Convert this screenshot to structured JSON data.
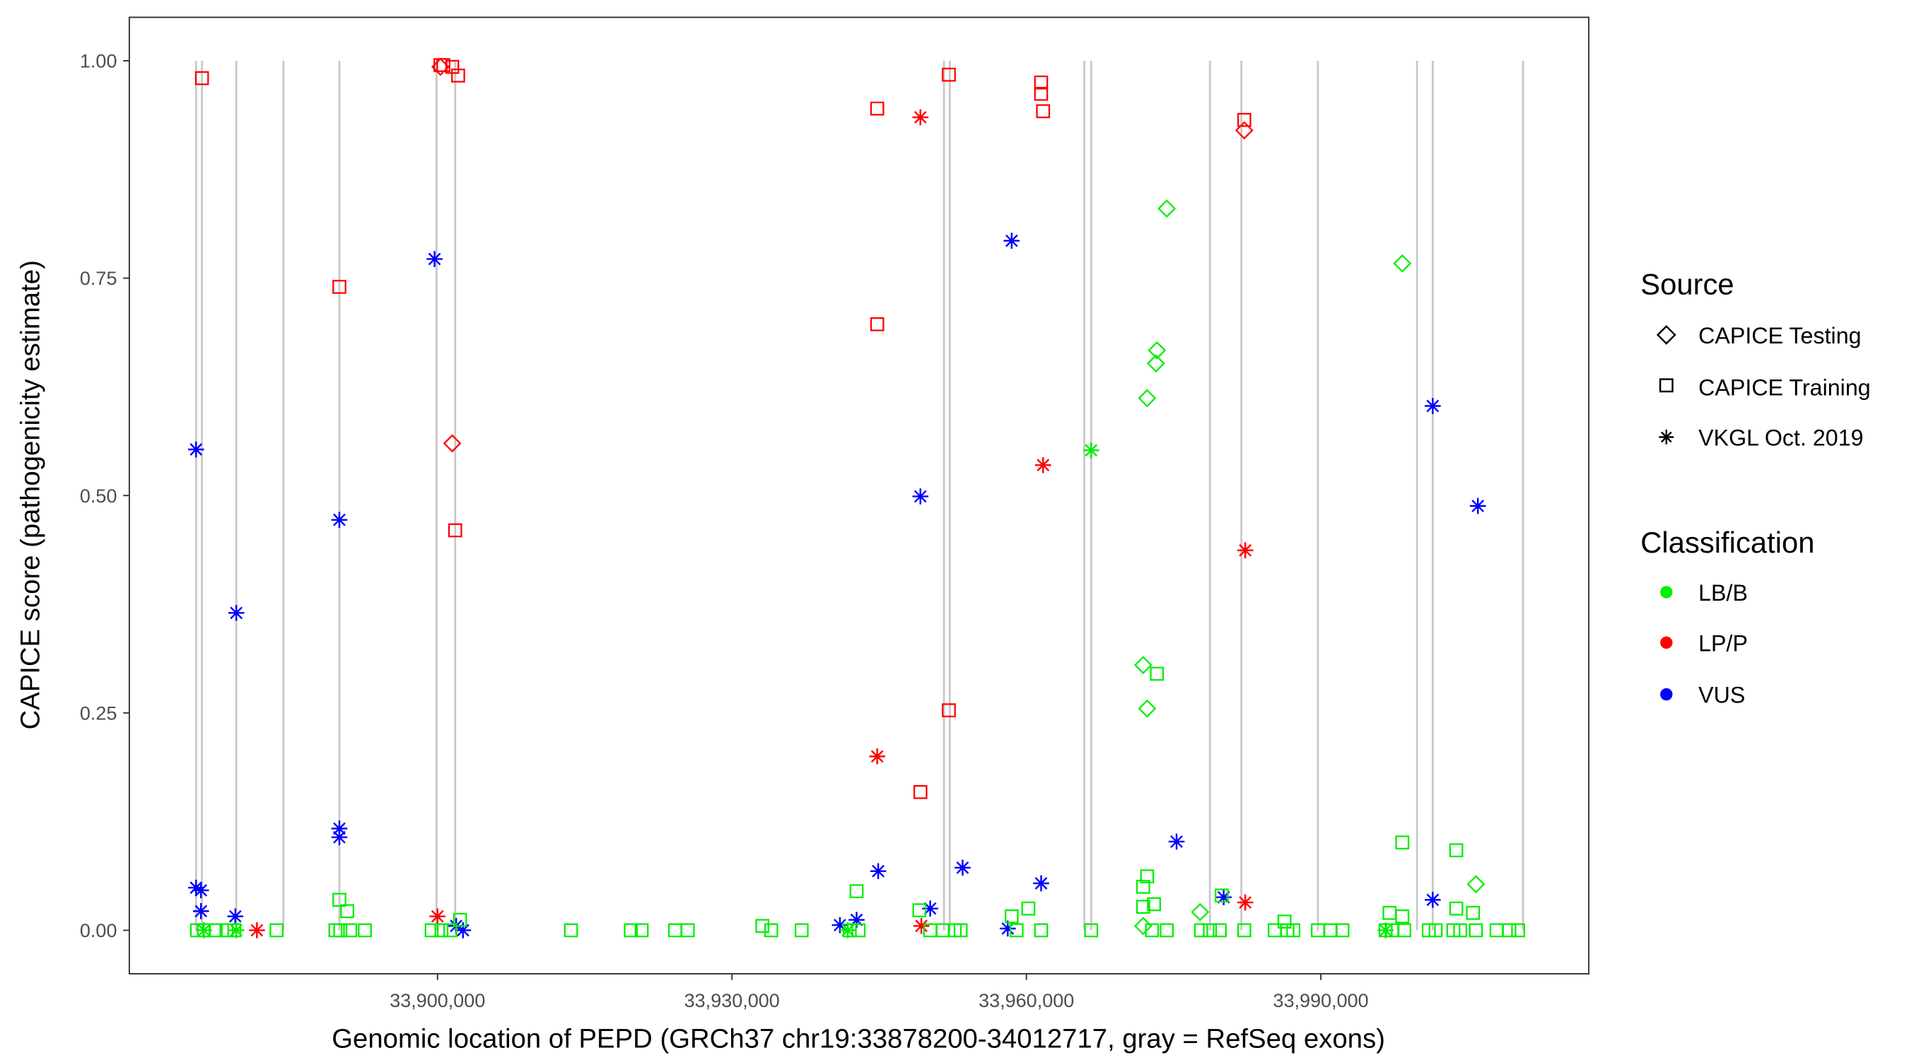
{
  "chart_data": {
    "type": "scatter",
    "xlabel": "Genomic location of PEPD (GRCh37 chr19:33878200-34012717, gray = RefSeq exons)",
    "ylabel": "CAPICE score (pathogenicity estimate)",
    "xlim": [
      33868600,
      34017300
    ],
    "ylim": [
      -0.05,
      1.05
    ],
    "x_ticks": [
      33900000,
      33930000,
      33960000,
      33990000
    ],
    "x_tick_labels": [
      "33,900,000",
      "33,930,000",
      "33,960,000",
      "33,990,000"
    ],
    "y_ticks": [
      0,
      0.25,
      0.5,
      0.75,
      1.0
    ],
    "y_tick_labels": [
      "0.00",
      "0.25",
      "0.50",
      "0.75",
      "1.00"
    ],
    "grid": false,
    "legend_placement": "right",
    "exons": [
      33875400,
      33876000,
      33879500,
      33884300,
      33890000,
      33899900,
      33901800,
      33951600,
      33952200,
      33965900,
      33966600,
      33978700,
      33981900,
      33989700,
      33999800,
      34001400,
      34010600
    ],
    "legend": {
      "source_title": "Source",
      "sources": [
        {
          "key": "testing",
          "label": "CAPICE Testing",
          "shape": "diamond"
        },
        {
          "key": "training",
          "label": "CAPICE Training",
          "shape": "square"
        },
        {
          "key": "vkgl",
          "label": "VKGL Oct. 2019",
          "shape": "asterisk"
        }
      ],
      "class_title": "Classification",
      "classes": [
        {
          "key": "LB/B",
          "label": "LB/B",
          "color": "#00ee00"
        },
        {
          "key": "LP/P",
          "label": "LP/P",
          "color": "#ff0000"
        },
        {
          "key": "VUS",
          "label": "VUS",
          "color": "#0000ff"
        }
      ]
    },
    "series": [
      {
        "source": "training",
        "class": "LP/P",
        "x": [
          33876000,
          33900300,
          33900600,
          33901500,
          33902100,
          33901800,
          33890000,
          33944800,
          33944800,
          33949200,
          33952100,
          33952100,
          33961500,
          33961500,
          33961700,
          33982200
        ],
        "y": [
          0.98,
          0.995,
          0.995,
          0.993,
          0.983,
          0.46,
          0.74,
          0.945,
          0.697,
          0.159,
          0.984,
          0.253,
          0.975,
          0.962,
          0.942,
          0.932
        ]
      },
      {
        "source": "testing",
        "class": "LP/P",
        "x": [
          33900300,
          33901500,
          33982200
        ],
        "y": [
          0.993,
          0.56,
          0.92
        ]
      },
      {
        "source": "vkgl",
        "class": "LP/P",
        "x": [
          33900000,
          33881600,
          33944800,
          33949200,
          33949300,
          33961700,
          33982300,
          33982300
        ],
        "y": [
          0.016,
          0.0,
          0.2,
          0.935,
          0.005,
          0.535,
          0.437,
          0.032
        ]
      },
      {
        "source": "vkgl",
        "class": "VUS",
        "x": [
          33875400,
          33875400,
          33875900,
          33875900,
          33879500,
          33879400,
          33890000,
          33890000,
          33890000,
          33899700,
          33901900,
          33902600,
          33941000,
          33942700,
          33944900,
          33949200,
          33950200,
          33953500,
          33958500,
          33958100,
          33961500,
          33975300,
          33980100,
          34001400,
          34001400,
          34006000
        ],
        "y": [
          0.553,
          0.049,
          0.046,
          0.022,
          0.365,
          0.016,
          0.472,
          0.117,
          0.107,
          0.772,
          0.005,
          0.0,
          0.006,
          0.012,
          0.068,
          0.499,
          0.025,
          0.072,
          0.793,
          0.002,
          0.054,
          0.102,
          0.038,
          0.603,
          0.035,
          0.488
        ]
      },
      {
        "source": "vkgl",
        "class": "LB/B",
        "x": [
          33966600,
          33876200,
          33879500,
          33941800,
          33996600
        ],
        "y": [
          0.552,
          0.0,
          0.0,
          0.0,
          0.0
        ]
      },
      {
        "source": "testing",
        "class": "LB/B",
        "x": [
          33974300,
          33998300,
          33973300,
          33973200,
          33972300,
          33971900,
          33972300,
          34005800,
          33977700,
          33971900
        ],
        "y": [
          0.83,
          0.767,
          0.667,
          0.652,
          0.612,
          0.305,
          0.255,
          0.053,
          0.021,
          0.005
        ]
      },
      {
        "source": "training",
        "class": "LB/B",
        "x": [
          33973300,
          33998300,
          34003800,
          33972300,
          33971900,
          33973000,
          33971900,
          33997000,
          33998300,
          34003800,
          34005500,
          33979900,
          33890000,
          33890800,
          33942700,
          33949100,
          33958500,
          33960200,
          33933100,
          33986300,
          33902300,
          33875500,
          33876200,
          33877400,
          33878500,
          33879300,
          33883600,
          33889600,
          33890100,
          33891100,
          33892600,
          33899400,
          33900400,
          33901300,
          33913600,
          33919700,
          33920800,
          33924200,
          33925500,
          33934000,
          33937100,
          33942000,
          33942900,
          33950200,
          33951500,
          33952700,
          33953300,
          33959000,
          33961500,
          33966600,
          33972800,
          33974300,
          33977800,
          33978700,
          33979700,
          33982200,
          33985300,
          33986600,
          33987200,
          33989700,
          33991000,
          33992200,
          33996600,
          33997300,
          33998500,
          34001000,
          34001700,
          34003500,
          34004200,
          34005800,
          34007900,
          34009200,
          34010100
        ],
        "y": [
          0.295,
          0.101,
          0.092,
          0.062,
          0.05,
          0.03,
          0.027,
          0.02,
          0.016,
          0.025,
          0.02,
          0.04,
          0.035,
          0.022,
          0.045,
          0.023,
          0.016,
          0.025,
          0.005,
          0.01,
          0.012,
          0,
          0,
          0,
          0,
          0,
          0,
          0,
          0,
          0,
          0,
          0,
          0,
          0,
          0,
          0,
          0,
          0,
          0,
          0,
          0,
          0,
          0,
          0,
          0,
          0,
          0,
          0,
          0,
          0,
          0,
          0,
          0,
          0,
          0,
          0,
          0,
          0,
          0,
          0,
          0,
          0,
          0,
          0,
          0,
          0,
          0,
          0,
          0,
          0,
          0,
          0,
          0
        ]
      }
    ]
  }
}
